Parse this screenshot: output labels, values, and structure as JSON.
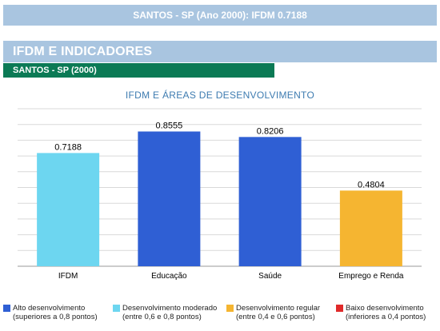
{
  "top_banner": "SANTOS - SP (Ano 2000): IFDM 0.7188",
  "section_title": "IFDM E INDICADORES",
  "city_label": "SANTOS - SP (2000)",
  "chart_data": {
    "type": "bar",
    "title": "IFDM E ÁREAS DE DESENVOLVIMENTO",
    "categories": [
      "IFDM",
      "Educação",
      "Saúde",
      "Emprego e Renda"
    ],
    "values": [
      0.7188,
      0.8555,
      0.8206,
      0.4804
    ],
    "value_labels": [
      "0.7188",
      "0.8555",
      "0.8206",
      "0.4804"
    ],
    "bar_colors": [
      "#6dd6f0",
      "#2f5fd4",
      "#2f5fd4",
      "#f5b531"
    ],
    "ylim": [
      0,
      1
    ],
    "grid": true,
    "xlabel": "",
    "ylabel": ""
  },
  "legend": [
    {
      "color": "#2f5fd4",
      "line1": "Alto desenvolvimento",
      "line2": "(superiores a 0,8 pontos)"
    },
    {
      "color": "#6dd6f0",
      "line1": "Desenvolvimento moderado",
      "line2": "(entre 0,6 e 0,8 pontos)"
    },
    {
      "color": "#f5b531",
      "line1": "Desenvolvimento regular",
      "line2": "(entre 0,4 e 0,6 pontos)"
    },
    {
      "color": "#e02a2a",
      "line1": "Baixo desenvolvimento",
      "line2": "(inferiores a 0,4 pontos)"
    }
  ]
}
